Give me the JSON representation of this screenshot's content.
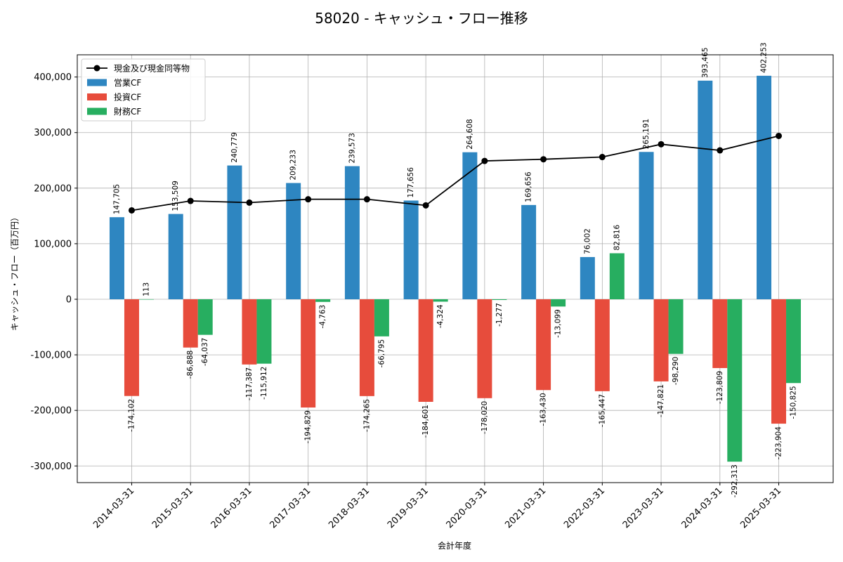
{
  "chart_data": {
    "type": "bar",
    "title": "58020 - キャッシュ・フロー推移",
    "xlabel": "会計年度",
    "ylabel": "キャッシュ・フロー（百万円）",
    "ylim": [
      -330000,
      440000
    ],
    "yticks": [
      -300000,
      -200000,
      -100000,
      0,
      100000,
      200000,
      300000,
      400000
    ],
    "ytick_labels": [
      "-300,000",
      "-200,000",
      "-100,000",
      "0",
      "100,000",
      "200,000",
      "300,000",
      "400,000"
    ],
    "grid": true,
    "legend_position": "top-left",
    "categories": [
      "2014-03-31",
      "2015-03-31",
      "2016-03-31",
      "2017-03-31",
      "2018-03-31",
      "2019-03-31",
      "2020-03-31",
      "2021-03-31",
      "2022-03-31",
      "2023-03-31",
      "2024-03-31",
      "2025-03-31"
    ],
    "series": [
      {
        "name": "営業CF",
        "kind": "bar",
        "color": "#2e86c1",
        "values": [
          147705,
          153509,
          240779,
          209233,
          239573,
          177656,
          264608,
          169656,
          76002,
          265191,
          393465,
          402253
        ],
        "labels": [
          "147,705",
          "153,509",
          "240,779",
          "209,233",
          "239,573",
          "177,656",
          "264,608",
          "169,656",
          "76,002",
          "265,191",
          "393,465",
          "402,253"
        ]
      },
      {
        "name": "投資CF",
        "kind": "bar",
        "color": "#e74c3c",
        "values": [
          -174102,
          -86888,
          -117387,
          -194829,
          -174265,
          -184601,
          -178020,
          -163430,
          -165447,
          -147821,
          -123809,
          -223904
        ],
        "labels": [
          "-174,102",
          "-86,888",
          "-117,387",
          "-194,829",
          "-174,265",
          "-184,601",
          "-178,020",
          "-163,430",
          "-165,447",
          "-147,821",
          "-123,809",
          "-223,904"
        ]
      },
      {
        "name": "財務CF",
        "kind": "bar",
        "color": "#27ae60",
        "values": [
          113,
          -64037,
          -115912,
          -4763,
          -66795,
          -4324,
          -1277,
          -13099,
          82816,
          -98290,
          -292313,
          -150825
        ],
        "labels": [
          "113",
          "-64,037",
          "-115,912",
          "-4,763",
          "-66,795",
          "-4,324",
          "-1,277",
          "-13,099",
          "82,816",
          "-98,290",
          "-292,313",
          "-150,825"
        ]
      },
      {
        "name": "現金及び現金同等物",
        "kind": "line",
        "color": "#000000",
        "values": [
          160000,
          177000,
          174000,
          180000,
          180000,
          169000,
          249000,
          252000,
          256000,
          279000,
          268000,
          294000
        ]
      }
    ]
  }
}
